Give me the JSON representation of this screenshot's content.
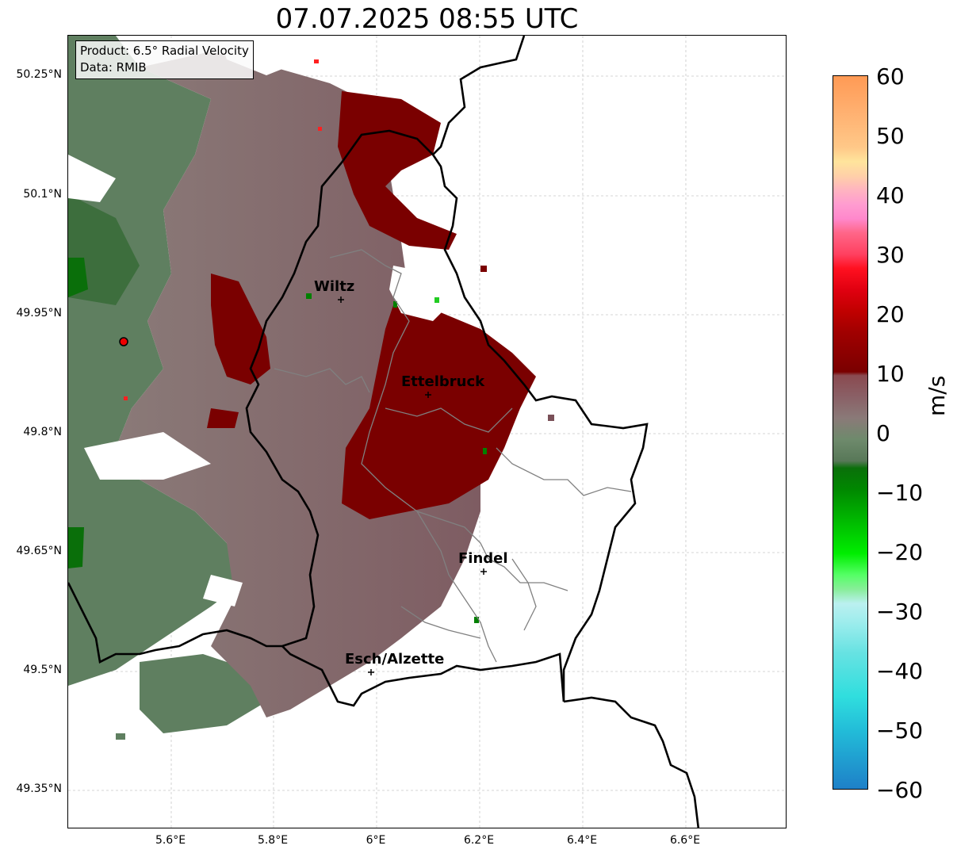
{
  "title": "07.07.2025 08:55 UTC",
  "info_box": {
    "product": "Product: 6.5° Radial Velocity",
    "data_source": "Data: RMIB"
  },
  "axes": {
    "y_ticks": [
      "50.25°N",
      "50.1°N",
      "49.95°N",
      "49.8°N",
      "49.65°N",
      "49.5°N",
      "49.35°N"
    ],
    "x_ticks": [
      "5.6°E",
      "5.8°E",
      "6°E",
      "6.2°E",
      "6.4°E",
      "6.6°E"
    ]
  },
  "cities": [
    {
      "name": "Wiltz"
    },
    {
      "name": "Ettelbruck"
    },
    {
      "name": "Findel"
    },
    {
      "name": "Esch/Alzette"
    }
  ],
  "colorbar": {
    "unit": "m/s",
    "min": -60,
    "max": 60,
    "ticks": [
      "60",
      "50",
      "40",
      "30",
      "20",
      "10",
      "0",
      "−10",
      "−20",
      "−30",
      "−40",
      "−50",
      "−60"
    ],
    "colors": {
      "strong_away": "#ff9a55",
      "light_orange": "#ffd79a",
      "pink": "#ff88cc",
      "red": "#ff1020",
      "dark_red": "#7a0000",
      "mauve": "#8a5a60",
      "grey_green": "#6a8a6a",
      "dark_green": "#006400",
      "bright_green": "#00ee00",
      "light_green": "#88ee99",
      "light_cyan": "#bbf0f0",
      "cyan": "#30dede",
      "blue": "#1e80c8"
    }
  },
  "radar_site_color": "#ee0000"
}
